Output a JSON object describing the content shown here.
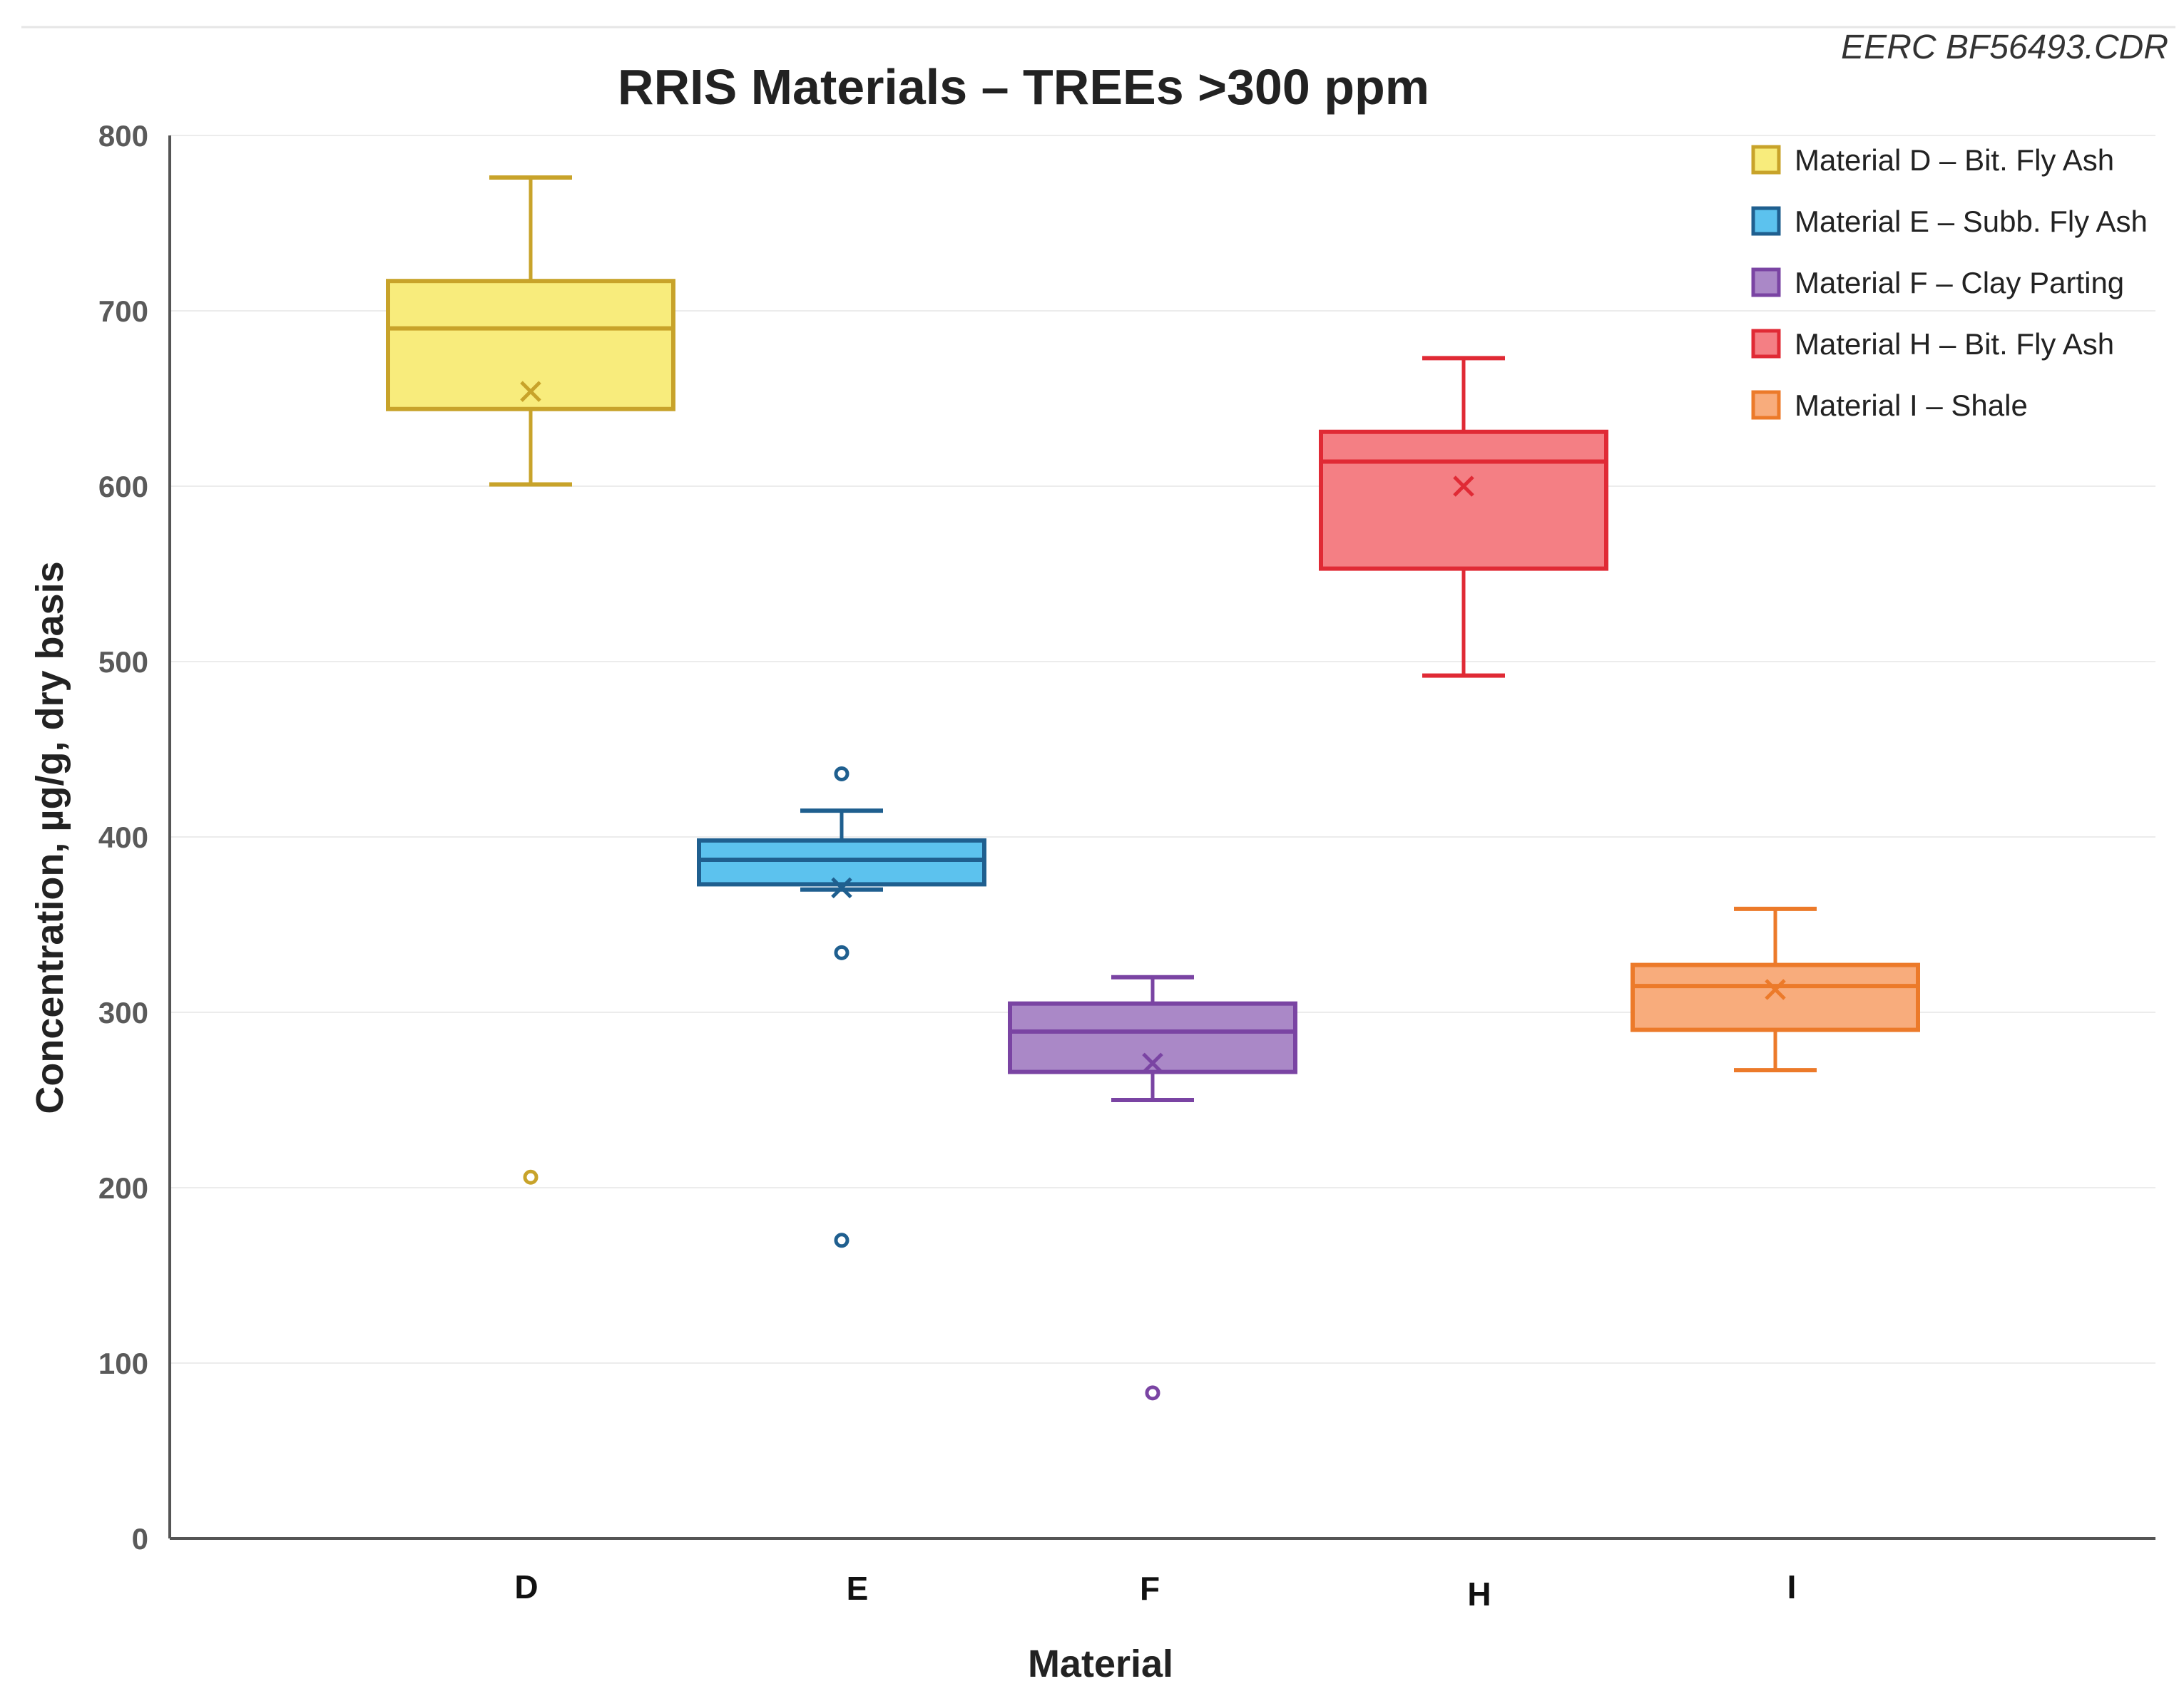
{
  "chart_data": {
    "type": "box",
    "title": "RRIS Materials – TREEs >300 ppm",
    "watermark": "EERC BF56493.CDR",
    "xlabel": "Material",
    "ylabel": "Concentration, µg/g, dry basis",
    "ylim": [
      0,
      800
    ],
    "yticks": [
      0,
      100,
      200,
      300,
      400,
      500,
      600,
      700,
      800
    ],
    "grid": true,
    "legend_position": "top-right",
    "categories": [
      "D",
      "E",
      "F",
      "H",
      "I"
    ],
    "series": [
      {
        "name": "Material D – Bit. Fly Ash",
        "category": "D",
        "color": "#c8a32a",
        "fill": "#f8ec7c",
        "whisker_low": 601,
        "q1": 644,
        "median": 690,
        "q3": 717,
        "whisker_high": 776,
        "mean": 654,
        "outliers": [
          206
        ]
      },
      {
        "name": "Material E – Subb. Fly Ash",
        "category": "E",
        "color": "#1f5f8f",
        "fill": "#5cc2ee",
        "whisker_low": 370,
        "q1": 373,
        "median": 387,
        "q3": 398,
        "whisker_high": 415,
        "mean": 371,
        "outliers": [
          436,
          334,
          170
        ]
      },
      {
        "name": "Material F – Clay Parting",
        "category": "F",
        "color": "#7a44a3",
        "fill": "#aa88c7",
        "whisker_low": 250,
        "q1": 266,
        "median": 289,
        "q3": 305,
        "whisker_high": 320,
        "mean": 271,
        "outliers": [
          83
        ]
      },
      {
        "name": "Material H – Bit. Fly Ash",
        "category": "H",
        "color": "#e02a35",
        "fill": "#f47f84",
        "whisker_low": 492,
        "q1": 553,
        "median": 614,
        "q3": 631,
        "whisker_high": 673,
        "mean": 600,
        "outliers": []
      },
      {
        "name": "Material I – Shale",
        "category": "I",
        "color": "#ec7a2a",
        "fill": "#f8ac7c",
        "whisker_low": 267,
        "q1": 290,
        "median": 315,
        "q3": 327,
        "whisker_high": 359,
        "mean": 313,
        "outliers": []
      }
    ]
  }
}
